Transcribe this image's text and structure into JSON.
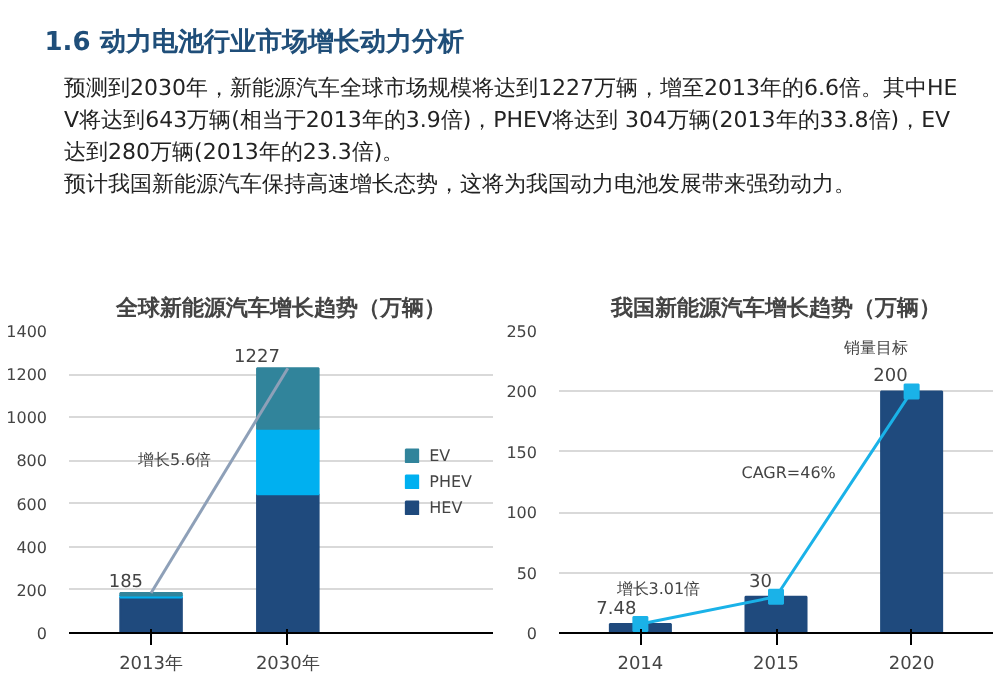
{
  "chart_data": [
    {
      "type": "other",
      "title": "1.6 动力电池行业市场增长动力分析",
      "annotations": [
        "预测到2030年，新能源汽车全球市场规模将达到1227万辆，增至2013年的6.6倍。其中HEV将达到643万辆(相当于2013年的3.9倍)，PHEV将达到 304万辆(2013年的33.8倍)，EV达到280万辆(2013年的23.3倍)。",
        "预计我国新能源汽车保持高速增长态势，这将为我国动力电池发展带来强劲动力。"
      ]
    },
    {
      "type": "bar",
      "title": "全球新能源汽车增长趋势（万辆）",
      "categories": [
        "2013年",
        "2030年"
      ],
      "stacked": true,
      "series": [
        {
          "name": "HEV",
          "color": "#1f4a7d",
          "values": [
            165,
            643
          ]
        },
        {
          "name": "PHEV",
          "color": "#00b0f0",
          "values": [
            9,
            304
          ]
        },
        {
          "name": "EV",
          "color": "#31849b",
          "values": [
            11,
            280
          ]
        },
        {
          "type": "line",
          "color": "#8ea0b8",
          "values": [
            185,
            1227
          ]
        }
      ],
      "totals": [
        "185",
        "1227"
      ],
      "ylim": [
        0,
        1400
      ],
      "yticks": [
        0,
        200,
        400,
        600,
        800,
        1000,
        1200,
        1400
      ],
      "grid": "y",
      "legend": "right",
      "annotations": [
        "增长5.6倍"
      ]
    },
    {
      "type": "bar",
      "title": "我国新能源汽车增长趋势（万辆）",
      "categories": [
        "2014",
        "2015",
        "2020"
      ],
      "series": [
        {
          "color": "#1f4a7d",
          "values": [
            7.48,
            30,
            200
          ]
        },
        {
          "type": "line",
          "color": "#1ab2e8",
          "marker": "square",
          "values": [
            7.48,
            30,
            200
          ],
          "value_labels": [
            "7.48",
            "30",
            "200"
          ]
        }
      ],
      "ylim": [
        0,
        250
      ],
      "yticks": [
        0,
        50,
        100,
        150,
        200,
        250
      ],
      "grid": "y",
      "annotations": [
        "增长3.01倍",
        "CAGR=46%",
        {
          "text": "销量目标",
          "x": "2020",
          "y": 200
        }
      ]
    }
  ]
}
